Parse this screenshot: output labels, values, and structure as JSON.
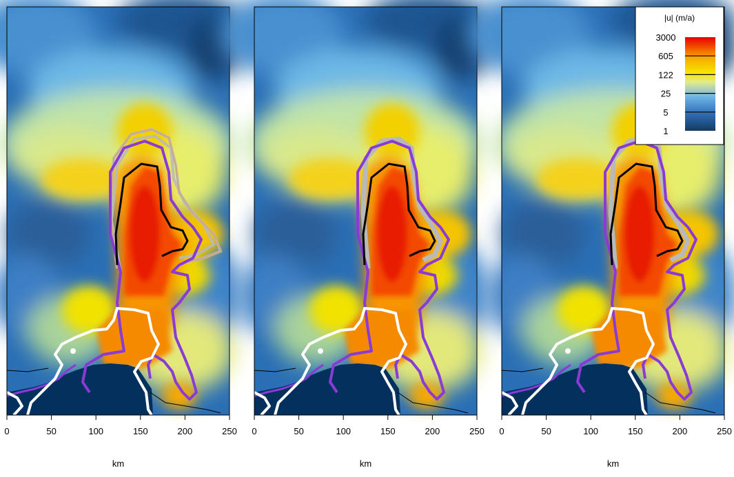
{
  "chart_data": [
    {
      "type": "heatmap",
      "panel": "left",
      "xlabel": "km",
      "x_ticks": [
        0,
        50,
        100,
        150,
        200,
        250
      ],
      "xlim": [
        0,
        250
      ],
      "grounding_lines": [
        "grey ensemble",
        "purple",
        "black",
        "white"
      ]
    },
    {
      "type": "heatmap",
      "panel": "middle",
      "xlabel": "km",
      "x_ticks": [
        0,
        50,
        100,
        150,
        200,
        250
      ],
      "xlim": [
        0,
        250
      ],
      "grounding_lines": [
        "grey ensemble",
        "purple",
        "black",
        "white"
      ]
    },
    {
      "type": "heatmap",
      "panel": "right",
      "xlabel": "km",
      "x_ticks": [
        0,
        50,
        100,
        150,
        200,
        250
      ],
      "xlim": [
        0,
        250
      ],
      "grounding_lines": [
        "grey ensemble",
        "purple",
        "black",
        "white"
      ]
    }
  ],
  "legend": {
    "title": "|u| (m/a)",
    "labels": [
      "3000",
      "605",
      "122",
      "25",
      "5",
      "1"
    ],
    "colors": [
      "#1a3d6b",
      "#2f6db3",
      "#6cb4e8",
      "#e8e88a",
      "#f7e600",
      "#f7a800",
      "#f24a00",
      "#e60000"
    ]
  }
}
